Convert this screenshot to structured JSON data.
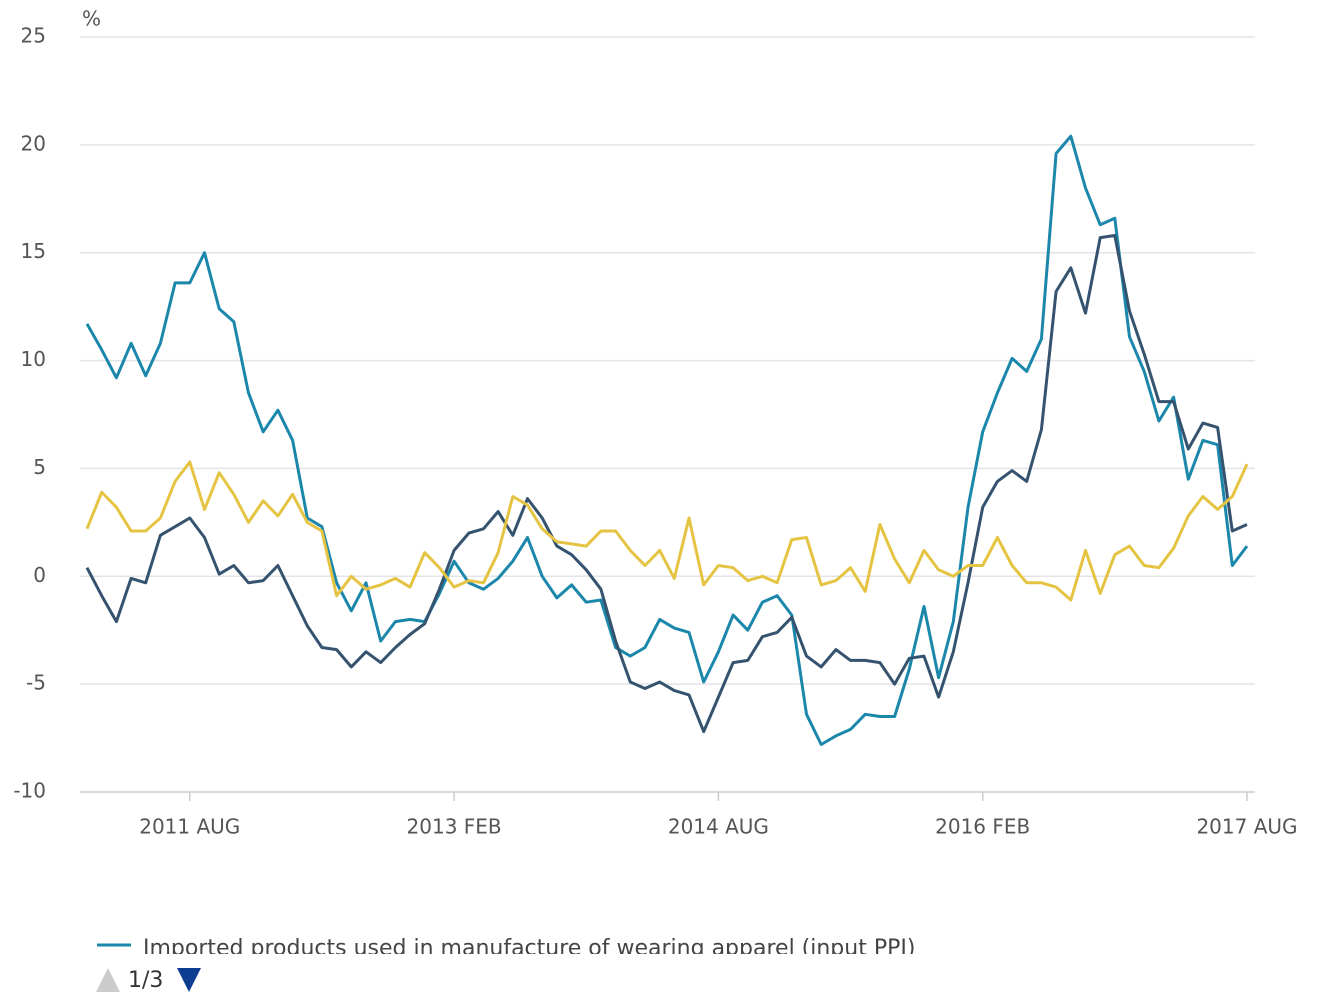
{
  "chart_data": {
    "type": "line",
    "y_unit": "%",
    "categories": [
      null,
      null,
      null,
      null,
      null,
      null,
      null,
      "2011 AUG",
      null,
      null,
      null,
      null,
      null,
      null,
      null,
      null,
      null,
      null,
      null,
      null,
      null,
      null,
      null,
      null,
      null,
      "2013 FEB",
      null,
      null,
      null,
      null,
      null,
      null,
      null,
      null,
      null,
      null,
      null,
      null,
      null,
      null,
      null,
      null,
      null,
      "2014 AUG",
      null,
      null,
      null,
      null,
      null,
      null,
      null,
      null,
      null,
      null,
      null,
      null,
      null,
      null,
      null,
      null,
      null,
      "2016 FEB",
      null,
      null,
      null,
      null,
      null,
      null,
      null,
      null,
      null,
      null,
      null,
      null,
      null,
      null,
      null,
      null,
      null,
      "2017 AUG"
    ],
    "series": [
      {
        "name": "Imported products used in manufacture of wearing apparel (input PPI)",
        "color": "#1b87ab",
        "values": [
          11.7,
          10.5,
          9.2,
          10.8,
          9.3,
          10.8,
          13.6,
          13.6,
          15.0,
          12.4,
          11.8,
          8.5,
          6.7,
          7.7,
          6.3,
          2.7,
          2.3,
          -0.3,
          -1.6,
          -0.3,
          -3.0,
          -2.1,
          -2.0,
          -2.1,
          -0.8,
          0.7,
          -0.3,
          -0.6,
          -0.1,
          0.7,
          1.8,
          0.0,
          -1.0,
          -0.4,
          -1.2,
          -1.1,
          -3.3,
          -3.7,
          -3.3,
          -2.0,
          -2.4,
          -2.6,
          -4.9,
          -3.5,
          -1.8,
          -2.5,
          -1.2,
          -0.9,
          -1.8,
          -6.4,
          -7.8,
          -7.4,
          -7.1,
          -6.4,
          -6.5,
          -6.5,
          -4.3,
          -1.4,
          -4.7,
          -2.1,
          3.2,
          6.7,
          8.5,
          10.1,
          9.5,
          11.0,
          19.6,
          20.4,
          18.0,
          16.3,
          16.6,
          11.1,
          9.5,
          7.2,
          8.3,
          4.5,
          6.3,
          6.1,
          0.5,
          1.4
        ]
      },
      {
        "color": "#35536f",
        "values": [
          0.4,
          -0.9,
          -2.1,
          -0.1,
          -0.3,
          1.9,
          2.3,
          2.7,
          1.8,
          0.1,
          0.5,
          -0.3,
          -0.2,
          0.5,
          -0.9,
          -2.3,
          -3.3,
          -3.4,
          -4.2,
          -3.5,
          -4.0,
          -3.3,
          -2.7,
          -2.2,
          -0.6,
          1.2,
          2.0,
          2.2,
          3.0,
          1.9,
          3.6,
          2.7,
          1.4,
          1.0,
          0.3,
          -0.6,
          -3.0,
          -4.9,
          -5.2,
          -4.9,
          -5.3,
          -5.5,
          -7.2,
          -5.6,
          -4.0,
          -3.9,
          -2.8,
          -2.6,
          -1.9,
          -3.7,
          -4.2,
          -3.4,
          -3.9,
          -3.9,
          -4.0,
          -5.0,
          -3.8,
          -3.7,
          -5.6,
          -3.5,
          -0.3,
          3.2,
          4.4,
          4.9,
          4.4,
          6.8,
          13.2,
          14.3,
          12.2,
          15.7,
          15.8,
          12.3,
          10.3,
          8.1,
          8.1,
          5.9,
          7.1,
          6.9,
          2.1,
          2.4
        ]
      },
      {
        "color": "#e5c443",
        "values": [
          2.2,
          3.9,
          3.2,
          2.1,
          2.1,
          2.7,
          4.4,
          5.3,
          3.1,
          4.8,
          3.8,
          2.5,
          3.5,
          2.8,
          3.8,
          2.5,
          2.1,
          -0.9,
          0.0,
          -0.6,
          -0.4,
          -0.1,
          -0.5,
          1.1,
          0.4,
          -0.5,
          -0.2,
          -0.3,
          1.1,
          3.7,
          3.3,
          2.2,
          1.6,
          1.5,
          1.4,
          2.1,
          2.1,
          1.2,
          0.5,
          1.2,
          -0.1,
          2.7,
          -0.4,
          0.5,
          0.4,
          -0.2,
          0.0,
          -0.3,
          1.7,
          1.8,
          -0.4,
          -0.2,
          0.4,
          -0.7,
          2.4,
          0.8,
          -0.3,
          1.2,
          0.3,
          0.0,
          0.5,
          0.5,
          1.8,
          0.5,
          -0.3,
          -0.3,
          -0.5,
          -1.1,
          1.2,
          -0.8,
          1.0,
          1.4,
          0.5,
          0.4,
          1.3,
          2.8,
          3.7,
          3.1,
          3.7,
          5.2
        ]
      }
    ],
    "ylim": [
      -10,
      25
    ],
    "yticks": [
      -10,
      -5,
      0,
      5,
      10,
      15,
      20,
      25
    ],
    "grid": true,
    "legend_pager": "1/3"
  }
}
